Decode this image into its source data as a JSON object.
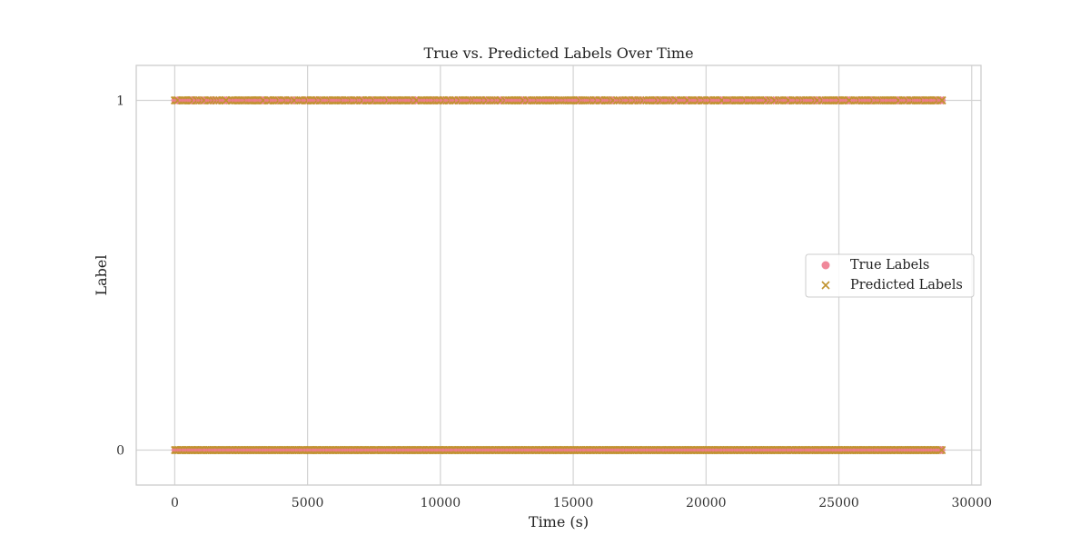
{
  "chart_data": {
    "type": "scatter",
    "title": "True vs. Predicted Labels Over Time",
    "xlabel": "Time (s)",
    "ylabel": "Label",
    "xlim": [
      -1450,
      30350
    ],
    "ylim": [
      -0.1,
      1.1
    ],
    "xticks": [
      0,
      5000,
      10000,
      15000,
      20000,
      25000,
      30000
    ],
    "yticks": [
      0,
      1
    ],
    "grid": true,
    "legend_position": "center-right",
    "series": [
      {
        "name": "True Labels",
        "marker": "circle",
        "color": "#ee7b8f",
        "x_range": [
          0,
          28900
        ],
        "y_values": [
          0,
          1
        ]
      },
      {
        "name": "Predicted Labels",
        "marker": "x",
        "color": "#c0932f",
        "x_range": [
          0,
          28900
        ],
        "y_values": [
          0,
          1
        ]
      }
    ]
  }
}
